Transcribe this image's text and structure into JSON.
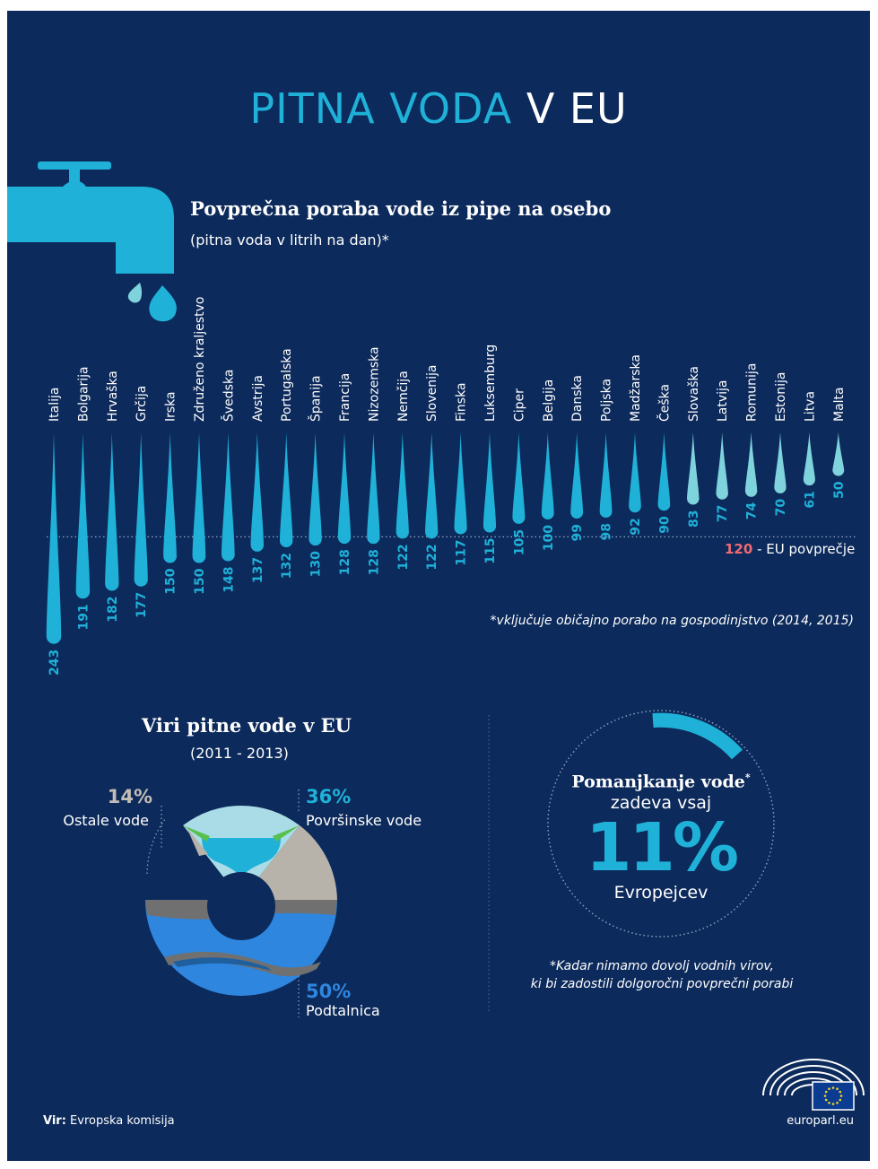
{
  "title": {
    "part1": "PITNA VODA",
    "part2": "V EU"
  },
  "chart_data": [
    {
      "type": "bar",
      "title": "Povprečna poraba vode iz pipe na osebo",
      "subtitle": "(pitna voda v litrih na dan)*",
      "categories": [
        "Italija",
        "Bolgarija",
        "Hrvaška",
        "Grčija",
        "Irska",
        "Združeno kraljestvo",
        "Švedska",
        "Avstrija",
        "Portugalska",
        "Španija",
        "Francija",
        "Nizozemska",
        "Nemčija",
        "Slovenija",
        "Finska",
        "Luksemburg",
        "Ciper",
        "Belgija",
        "Danska",
        "Poljska",
        "Madžarska",
        "Češka",
        "Slovaška",
        "Latvija",
        "Romunija",
        "Estonija",
        "Litva",
        "Malta"
      ],
      "values": [
        243,
        191,
        182,
        177,
        150,
        150,
        148,
        137,
        132,
        130,
        128,
        128,
        122,
        122,
        117,
        115,
        105,
        100,
        99,
        98,
        92,
        90,
        83,
        77,
        74,
        70,
        61,
        50
      ],
      "reference_line": {
        "value": 120,
        "value_label": "120",
        "label": "- EU povprečje"
      },
      "footnote": "*vključuje običajno porabo na gospodinjstvo (2014, 2015)"
    },
    {
      "type": "pie",
      "title": "Viri pitne vode v EU",
      "subtitle": "(2011 - 2013)",
      "slices": [
        {
          "name": "Površinske vode",
          "value": 36,
          "label": "36%",
          "color": "#1fb1d8"
        },
        {
          "name": "Podtalnica",
          "value": 50,
          "label": "50%",
          "color": "#2e86de"
        },
        {
          "name": "Ostale vode",
          "value": 14,
          "label": "14%",
          "color": "#b8b3aa"
        }
      ]
    }
  ],
  "shortage": {
    "line1": "Pomanjkanje vode",
    "star": "*",
    "line2": "zadeva vsaj",
    "value": "11%",
    "line3": "Evropejcev",
    "note_line1": "*Kadar nimamo dovolj vodnih virov,",
    "note_line2": "ki bi zadostili dolgoročni povprečni porabi"
  },
  "footer": {
    "source_label": "Vir:",
    "source": "Evropska komisija",
    "site": "europarl.eu"
  },
  "colors": {
    "background": "#0c2a5b",
    "accent": "#1fb1d8",
    "light_drop": "#7fd3dc",
    "average": "#ef6b72"
  }
}
